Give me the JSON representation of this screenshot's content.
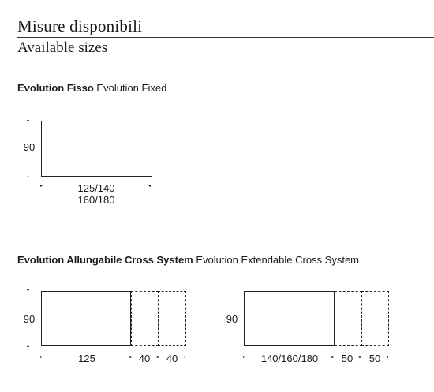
{
  "header": {
    "title": "Misure disponibili",
    "subtitle": "Available sizes"
  },
  "fixed": {
    "name_it": "Evolution Fisso",
    "name_en": "Evolution Fixed",
    "height": "90",
    "width_line1": "125/140",
    "width_line2": "160/180"
  },
  "extendable": {
    "name_it": "Evolution Allungabile Cross System",
    "name_en": "Evolution Extendable Cross System",
    "table_a": {
      "height": "90",
      "width": "125",
      "ext1": "40",
      "ext2": "40"
    },
    "table_b": {
      "height": "90",
      "width": "140/160/180",
      "ext1": "50",
      "ext2": "50"
    }
  }
}
